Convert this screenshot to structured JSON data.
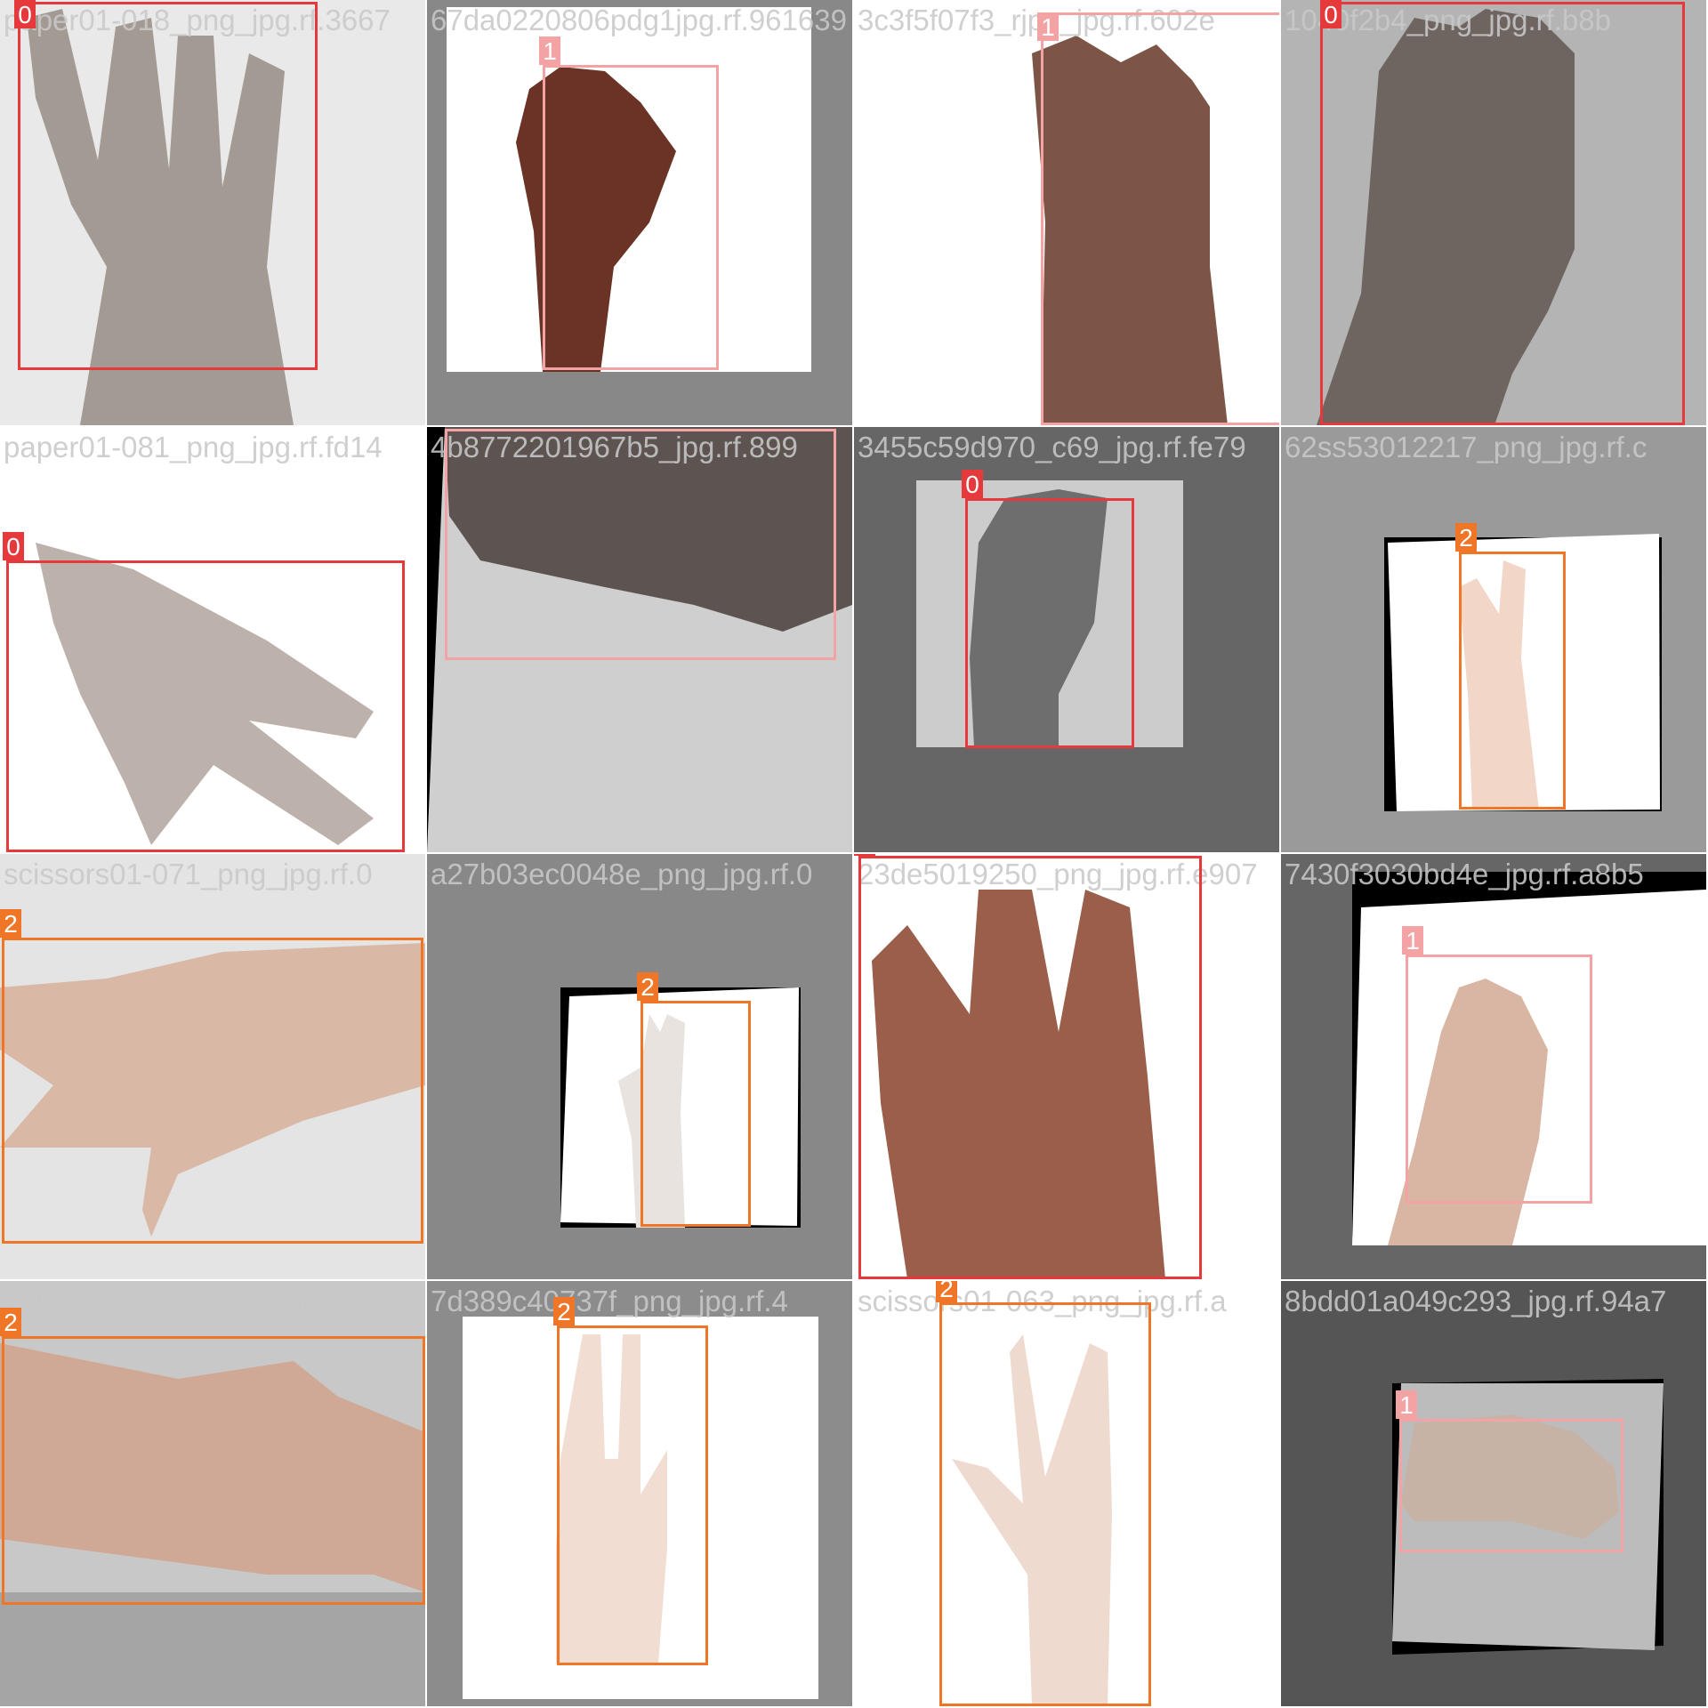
{
  "mosaic": {
    "class_colors": {
      "0": "#e5393b",
      "1": "#f3a3a3",
      "2": "#ef7627"
    },
    "tiles": [
      {
        "filenames": [
          "paper01-018_png_jpg.rf.3667"
        ],
        "labels": [
          "0"
        ]
      },
      {
        "filenames": [
          "67da0220806pdg1jpg.rf.961639"
        ],
        "labels": [
          "1"
        ]
      },
      {
        "filenames": [
          "3c3f5f07f3_rjpg_jpg.rf.602e"
        ],
        "labels": [
          "1"
        ]
      },
      {
        "filenames": [
          "1040f2b4_png_jpg.rf.b8b"
        ],
        "labels": [
          "0"
        ]
      },
      {
        "filenames": [
          "paper01-081_png_jpg.rf.fd14"
        ],
        "labels": [
          "0"
        ]
      },
      {
        "filenames": [
          "4b8772201967b5_jpg.rf.899"
        ],
        "labels": [
          "1"
        ]
      },
      {
        "filenames": [
          "3455c59d970_c69_jpg.rf.fe79"
        ],
        "labels": [
          "0"
        ]
      },
      {
        "filenames": [
          "62ss53012217_png_jpg.rf.c"
        ],
        "labels": [
          "2"
        ]
      },
      {
        "filenames": [
          "scissors01-071_png_jpg.rf.0"
        ],
        "labels": [
          "2"
        ]
      },
      {
        "filenames": [
          "a27b03ec0048e_png_jpg.rf.0"
        ],
        "labels": [
          "2"
        ]
      },
      {
        "filenames": [
          "23de5019250_png_jpg.rf.e907"
        ],
        "labels": [
          "0"
        ]
      },
      {
        "filenames": [
          "7430f3030bd4e_jpg.rf.a8b5"
        ],
        "labels": [
          "1"
        ]
      },
      {
        "filenames": [
          "scissors01-106_png_jpg.rf.d"
        ],
        "labels": [
          "2"
        ]
      },
      {
        "filenames": [
          "7d389c40737f_png_jpg.rf.4"
        ],
        "labels": [
          "2"
        ]
      },
      {
        "filenames": [
          "scissors01-063_png_jpg.rf.a"
        ],
        "labels": [
          "2"
        ]
      },
      {
        "filenames": [
          "8bdd01a049c293_jpg.rf.94a7"
        ],
        "labels": [
          "1"
        ]
      }
    ]
  }
}
